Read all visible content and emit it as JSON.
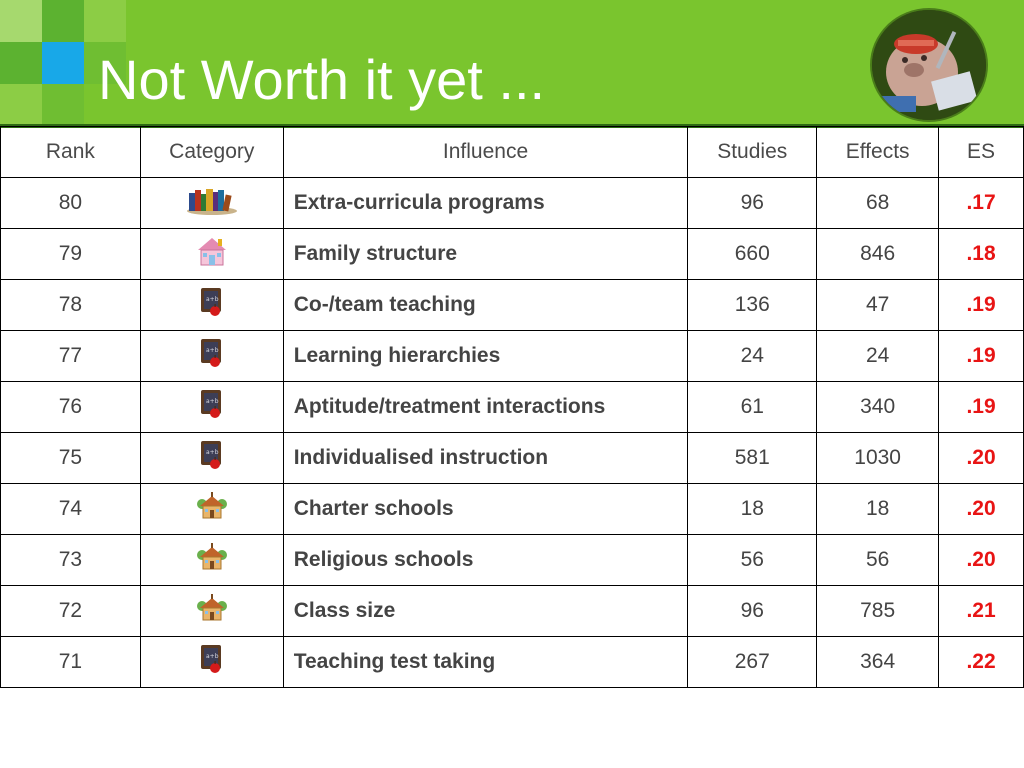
{
  "slide": {
    "title": "Not Worth it yet ..."
  },
  "table": {
    "headers": [
      "Rank",
      "Category",
      "Influence",
      "Studies",
      "Effects",
      "ES"
    ],
    "rows": [
      {
        "rank": "80",
        "category_icon": "books-icon",
        "influence": "Extra-curricula programs",
        "studies": "96",
        "effects": "68",
        "es": ".17"
      },
      {
        "rank": "79",
        "category_icon": "house-icon",
        "influence": "Family structure",
        "studies": "660",
        "effects": "846",
        "es": ".18"
      },
      {
        "rank": "78",
        "category_icon": "chalkboard-apple-icon",
        "influence": "Co-/team teaching",
        "studies": "136",
        "effects": "47",
        "es": ".19"
      },
      {
        "rank": "77",
        "category_icon": "chalkboard-apple-icon",
        "influence": "Learning hierarchies",
        "studies": "24",
        "effects": "24",
        "es": ".19"
      },
      {
        "rank": "76",
        "category_icon": "chalkboard-apple-icon",
        "influence": "Aptitude/treatment interactions",
        "studies": "61",
        "effects": "340",
        "es": ".19"
      },
      {
        "rank": "75",
        "category_icon": "chalkboard-apple-icon",
        "influence": "Individualised instruction",
        "studies": "581",
        "effects": "1030",
        "es": ".20"
      },
      {
        "rank": "74",
        "category_icon": "schoolhouse-icon",
        "influence": "Charter schools",
        "studies": "18",
        "effects": "18",
        "es": ".20"
      },
      {
        "rank": "73",
        "category_icon": "schoolhouse-icon",
        "influence": "Religious schools",
        "studies": "56",
        "effects": "56",
        "es": ".20"
      },
      {
        "rank": "72",
        "category_icon": "schoolhouse-icon",
        "influence": "Class size",
        "studies": "96",
        "effects": "785",
        "es": ".21"
      },
      {
        "rank": "71",
        "category_icon": "chalkboard-apple-icon",
        "influence": "Teaching test taking",
        "studies": "267",
        "effects": "364",
        "es": ".22"
      }
    ]
  },
  "colors": {
    "header_green": "#7ac52e",
    "accent_blue": "#18a8e8",
    "es_red": "#e81414"
  }
}
